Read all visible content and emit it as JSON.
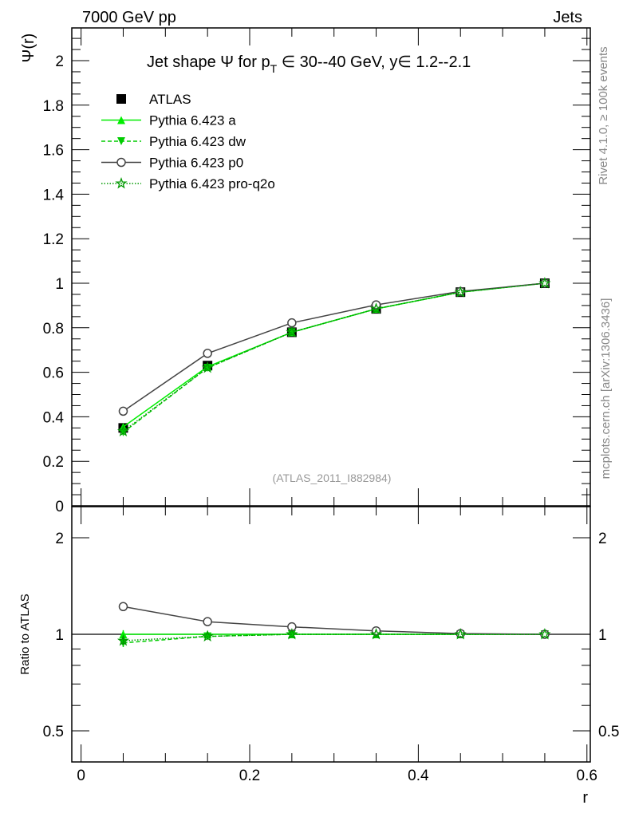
{
  "header": {
    "left": "7000 GeV pp",
    "right": "Jets"
  },
  "side_labels": {
    "rivet": "Rivet 4.1.0, ≥ 100k events",
    "mcplots": "mcplots.cern.ch [arXiv:1306.3436]"
  },
  "chart_data": [
    {
      "type": "line",
      "title": "Jet shape Ψ for p_T ∈ 30--40 GeV, y∈ 1.2--2.1",
      "title_parts": {
        "pre": "Jet shape Ψ for p",
        "sub": "T",
        "post": " ∈ 30--40 GeV, y∈ 1.2--2.1"
      },
      "ylabel": "Ψ(r)",
      "xlabel": "r",
      "annotation": "(ATLAS_2011_I882984)",
      "xlim": [
        -0.011,
        0.604
      ],
      "ylim": [
        0,
        2.147
      ],
      "yticks": [
        0,
        0.2,
        0.4,
        0.6,
        0.8,
        1,
        1.2,
        1.4,
        1.6,
        1.8,
        2
      ],
      "ytick_labels": [
        "0",
        "0.2",
        "0.4",
        "0.6",
        "0.8",
        "1",
        "1.2",
        "1.4",
        "1.6",
        "1.8",
        "2"
      ],
      "legend_position": "top-left",
      "x": [
        0.05,
        0.15,
        0.25,
        0.35,
        0.45,
        0.55
      ],
      "series": [
        {
          "name": "ATLAS",
          "color": "#000000",
          "marker": "square",
          "values": [
            0.35,
            0.63,
            0.78,
            0.885,
            0.96,
            1.0
          ]
        },
        {
          "name": "Pythia 6.423 a",
          "color": "#00ee00",
          "marker": "triangle-up",
          "dash": "",
          "values": [
            0.355,
            0.625,
            0.78,
            0.885,
            0.96,
            1.0
          ]
        },
        {
          "name": "Pythia 6.423 dw",
          "color": "#00cc00",
          "marker": "triangle-down",
          "dash": "5,3",
          "values": [
            0.33,
            0.62,
            0.78,
            0.885,
            0.96,
            1.0
          ]
        },
        {
          "name": "Pythia 6.423 p0",
          "color": "#444444",
          "marker": "circle",
          "dash": "",
          "values": [
            0.425,
            0.685,
            0.822,
            0.903,
            0.963,
            1.0
          ]
        },
        {
          "name": "Pythia 6.423 pro-q2o",
          "color": "#009900",
          "marker": "star",
          "dash": "1.5,2",
          "values": [
            0.335,
            0.62,
            0.78,
            0.885,
            0.96,
            1.0
          ]
        }
      ]
    },
    {
      "type": "line",
      "ylabel": "Ratio to ATLAS",
      "xlabel": "r",
      "yscale": "log",
      "ylim": [
        0.4,
        2.5
      ],
      "yticks": [
        0.5,
        1,
        2
      ],
      "ytick_labels": [
        "0.5",
        "1",
        "2"
      ],
      "xticks": [
        0,
        0.2,
        0.4,
        0.6
      ],
      "xtick_labels": [
        "0",
        "0.2",
        "0.4",
        "0.6"
      ],
      "x": [
        0.05,
        0.15,
        0.25,
        0.35,
        0.45,
        0.55
      ],
      "series": [
        {
          "name": "Pythia 6.423 a",
          "values": [
            1.0,
            1.0,
            1.0,
            1.0,
            1.0,
            1.0
          ]
        },
        {
          "name": "Pythia 6.423 dw",
          "values": [
            0.94,
            0.985,
            1.0,
            1.0,
            1.0,
            1.0
          ]
        },
        {
          "name": "Pythia 6.423 p0",
          "values": [
            1.22,
            1.095,
            1.055,
            1.025,
            1.005,
            1.0
          ]
        },
        {
          "name": "Pythia 6.423 pro-q2o",
          "values": [
            0.955,
            0.985,
            1.0,
            1.0,
            1.0,
            1.0
          ]
        }
      ]
    }
  ]
}
